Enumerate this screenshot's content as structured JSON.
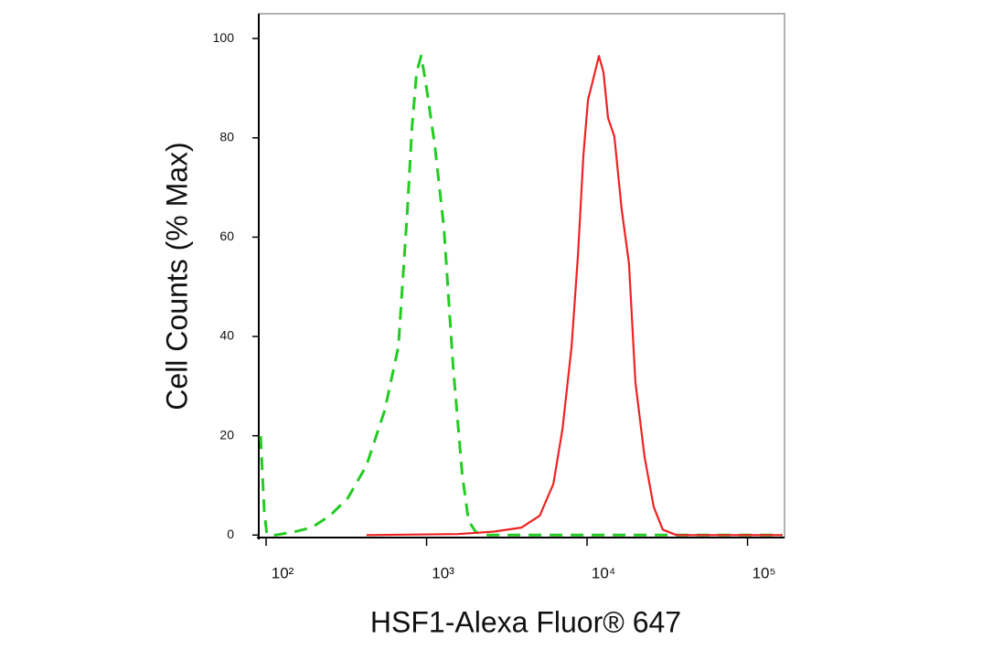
{
  "chart_data": {
    "type": "line",
    "x_label": "HSF1-Alexa Fluor® 647",
    "y_label": "Cell Counts (% Max)",
    "xscale": "log",
    "xlim": [
      90,
      170000
    ],
    "ylim": [
      -0.5,
      105
    ],
    "xticks": [
      {
        "value": 100,
        "label": "10²"
      },
      {
        "value": 1000,
        "label": "10³"
      },
      {
        "value": 10000,
        "label": "10⁴"
      },
      {
        "value": 100000,
        "label": "10⁵"
      }
    ],
    "yticks": [
      0,
      20,
      40,
      60,
      80,
      100
    ],
    "series": [
      {
        "color": "#22cc22",
        "dashed": true,
        "x": [
          92.4,
          97.4,
          101,
          114,
          148,
          192,
          250,
          324,
          422,
          548,
          667,
          760,
          811,
          866,
          925,
          987,
          1125,
          1282,
          1462,
          1667,
          1826,
          2026,
          2311,
          165000
        ],
        "values": [
          19.9,
          4.8,
          0.2,
          0,
          0.6,
          1.5,
          3.9,
          7.5,
          14,
          25.1,
          37.9,
          65.6,
          82.1,
          93.2,
          96.5,
          91.3,
          78.5,
          61.9,
          34.1,
          12.2,
          2.9,
          0.6,
          0,
          0
        ]
      },
      {
        "color": "#ee2222",
        "dashed": false,
        "x": [
          422,
          1560,
          2630,
          3900,
          5070,
          6170,
          7030,
          8010,
          8780,
          9490,
          10140,
          10820,
          11850,
          12650,
          13510,
          14800,
          16440,
          18240,
          20000,
          22800,
          26000,
          29600,
          36100,
          165000
        ],
        "values": [
          0,
          0.2,
          0.7,
          1.5,
          3.9,
          10.3,
          21.4,
          37.9,
          56.4,
          76.6,
          87.7,
          91.3,
          96.5,
          93.2,
          84,
          80.3,
          65.6,
          54.7,
          30.8,
          15.8,
          5.7,
          1.1,
          0,
          0
        ]
      }
    ]
  }
}
